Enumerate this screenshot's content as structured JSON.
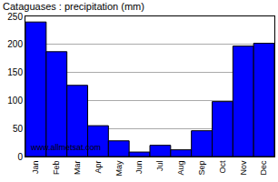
{
  "chart_data": {
    "type": "bar",
    "title": "Cataguases : precipitation (mm)",
    "categories": [
      "Jan",
      "Feb",
      "Mar",
      "Apr",
      "May",
      "Jun",
      "Jul",
      "Aug",
      "Sep",
      "Oct",
      "Nov",
      "Dec"
    ],
    "values": [
      240,
      187,
      127,
      55,
      28,
      8,
      20,
      12,
      46,
      98,
      197,
      202
    ],
    "color": "#0000ff",
    "ylim": [
      0,
      250
    ],
    "yticks": [
      0,
      50,
      100,
      150,
      200,
      250
    ],
    "grid": true,
    "annotations": [
      "www.allmetsat.com"
    ]
  }
}
